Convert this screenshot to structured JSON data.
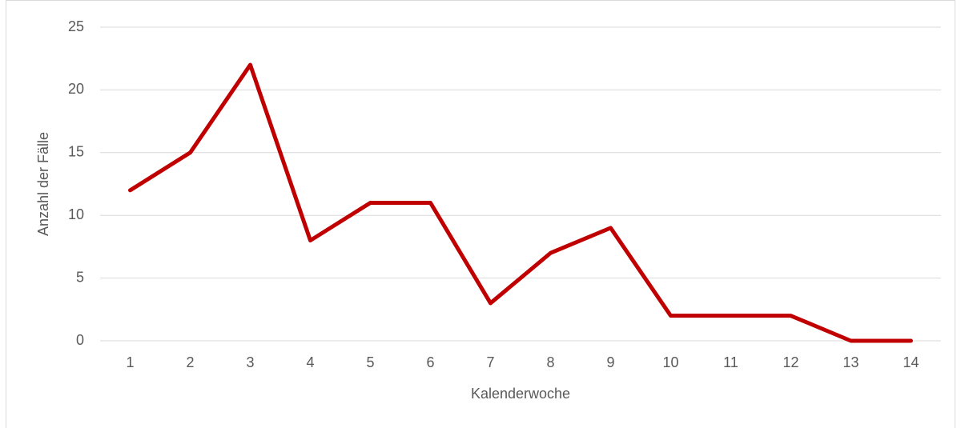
{
  "chart_data": {
    "type": "line",
    "x_label": "Kalenderwoche",
    "y_label": "Anzahl der Fälle",
    "categories": [
      "1",
      "2",
      "3",
      "4",
      "5",
      "6",
      "7",
      "8",
      "9",
      "10",
      "11",
      "12",
      "13",
      "14"
    ],
    "values": [
      12,
      15,
      22,
      8,
      11,
      11,
      3,
      7,
      9,
      2,
      2,
      2,
      0,
      0
    ],
    "color": "#c00000",
    "ylim": [
      0,
      25
    ],
    "yticks": [
      0,
      5,
      10,
      15,
      20,
      25
    ],
    "grid": true
  }
}
